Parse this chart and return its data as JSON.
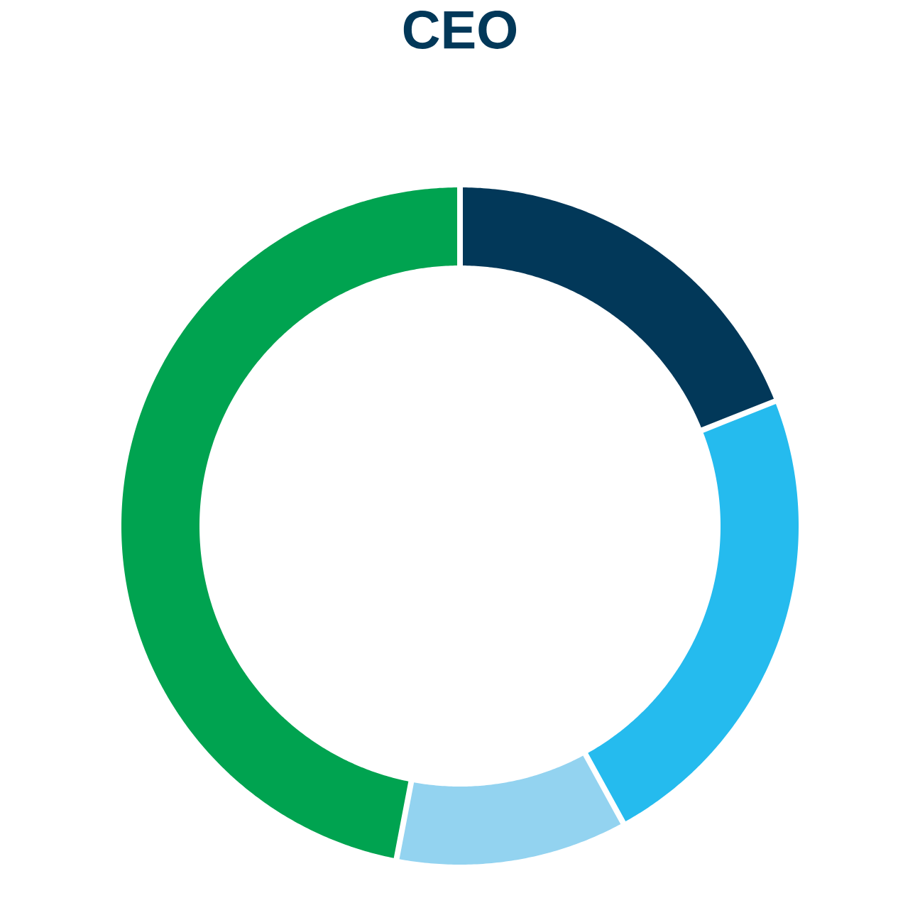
{
  "chart_data": {
    "type": "donut",
    "title": "CEO",
    "categories": [
      null,
      null,
      null,
      null
    ],
    "values": [
      19,
      23,
      11,
      47
    ],
    "colors": [
      "#023859",
      "#25bbee",
      "#93d3f0",
      "#00a350"
    ]
  }
}
